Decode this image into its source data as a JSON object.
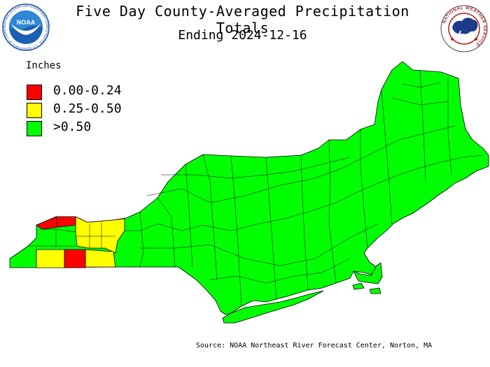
{
  "title": "Five Day County-Averaged Precipitation Totals",
  "subtitle": "Ending 2024-12-16",
  "legend": {
    "title": "Inches",
    "items": [
      {
        "label": "0.00-0.24",
        "color": "#ff0000"
      },
      {
        "label": "0.25-0.50",
        "color": "#ffff00"
      },
      {
        "label": ">0.50",
        "color": "#00ff00"
      }
    ]
  },
  "source": "Source: NOAA Northeast River Forecast Center, Norton, MA",
  "logos": {
    "noaa": {
      "text": "NOAA",
      "ring_text": "NATIONAL OCEANIC AND ATMOSPHERIC ADMINISTRATION · U.S. DEPARTMENT OF COMMERCE"
    },
    "nws": {
      "ring_text": "NATIONAL WEATHER SERVICE"
    }
  }
}
